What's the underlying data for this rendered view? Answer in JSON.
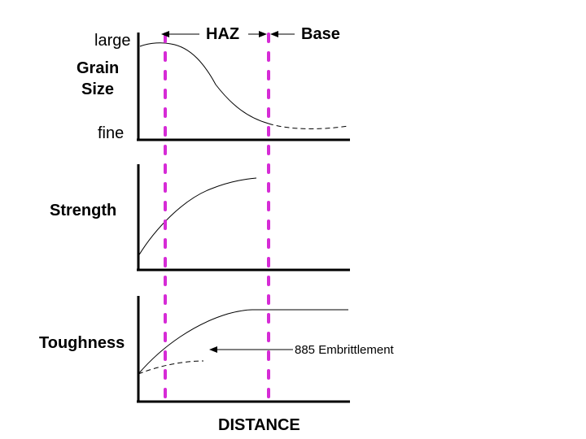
{
  "labels": {
    "large": "large",
    "grain_size_line1": "Grain",
    "grain_size_line2": "Size",
    "fine": "fine",
    "strength": "Strength",
    "toughness": "Toughness",
    "haz": "HAZ",
    "base": "Base",
    "embrittlement": "885 Embrittlement",
    "distance": "DISTANCE"
  },
  "colors": {
    "boundary": "#d62bd6",
    "ink": "#000000"
  }
}
